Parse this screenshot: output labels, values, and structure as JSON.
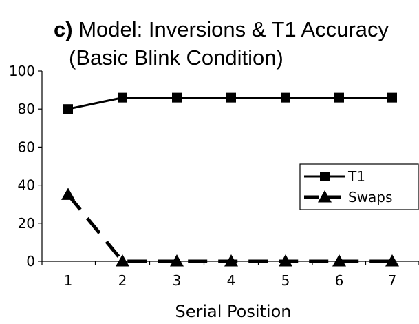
{
  "chart_data": {
    "type": "line",
    "title_prefix": "c)",
    "title_line1": " Model:  Inversions & T1 Accuracy",
    "title_line2": "(Basic Blink Condition)",
    "xlabel": "Serial Position",
    "ylabel": "",
    "x": [
      1,
      2,
      3,
      4,
      5,
      6,
      7
    ],
    "x_tick_labels": [
      "1",
      "2",
      "3",
      "4",
      "5",
      "6",
      "7"
    ],
    "ylim": [
      0,
      100
    ],
    "y_ticks": [
      0,
      20,
      40,
      60,
      80,
      100
    ],
    "y_tick_labels": [
      "0",
      "20",
      "40",
      "60",
      "80",
      "100"
    ],
    "grid": false,
    "legend_position": "right",
    "series": [
      {
        "name": "T1",
        "values": [
          80,
          86,
          86,
          86,
          86,
          86,
          86
        ],
        "marker": "square",
        "line": "solid",
        "color": "#000000"
      },
      {
        "name": "Swaps",
        "values": [
          35,
          0,
          0,
          0,
          0,
          0,
          0
        ],
        "marker": "triangle",
        "line": "dashed",
        "color": "#000000"
      }
    ]
  }
}
